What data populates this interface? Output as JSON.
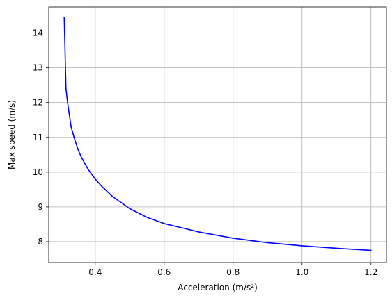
{
  "chart_data": {
    "type": "line",
    "title": "",
    "xlabel": "Acceleration (m/s²)",
    "ylabel": "Max speed (m/s)",
    "xlim": [
      0.265,
      1.245
    ],
    "ylim": [
      7.4,
      14.75
    ],
    "xticks": [
      0.4,
      0.6,
      0.8,
      1.0,
      1.2
    ],
    "xtick_labels": [
      "0.4",
      "0.6",
      "0.8",
      "1.0",
      "1.2"
    ],
    "yticks": [
      8,
      9,
      10,
      11,
      12,
      13,
      14
    ],
    "ytick_labels": [
      "8",
      "9",
      "10",
      "11",
      "12",
      "13",
      "14"
    ],
    "grid": true,
    "legend": "none",
    "series": [
      {
        "color": "#0000ff",
        "x": [
          0.31,
          0.315,
          0.32,
          0.33,
          0.34,
          0.35,
          0.36,
          0.38,
          0.4,
          0.42,
          0.45,
          0.5,
          0.55,
          0.6,
          0.7,
          0.8,
          0.9,
          1.0,
          1.1,
          1.2
        ],
        "y": [
          14.45,
          12.4,
          11.98,
          11.3,
          10.95,
          10.65,
          10.42,
          10.07,
          9.8,
          9.58,
          9.3,
          8.95,
          8.7,
          8.52,
          8.28,
          8.1,
          7.97,
          7.88,
          7.81,
          7.75
        ]
      }
    ]
  }
}
